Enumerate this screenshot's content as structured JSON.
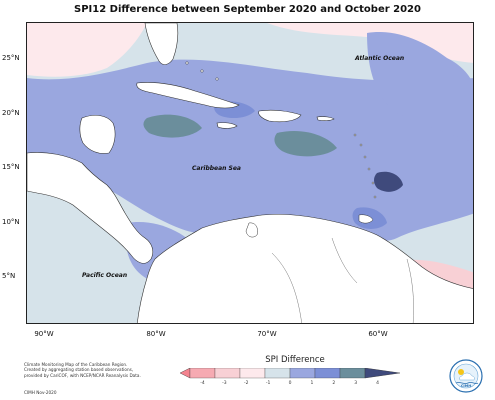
{
  "map": {
    "title": "SPI12 Difference between September 2020 and October 2020",
    "lat_labels": [
      "25°N",
      "20°N",
      "15°N",
      "10°N",
      "5°N"
    ],
    "lon_labels": [
      "90°W",
      "80°W",
      "70°W",
      "60°W"
    ],
    "places": {
      "atlantic": "Atlantic Ocean",
      "caribbean": "Caribbean Sea",
      "pacific": "Pacific Ocean"
    }
  },
  "legend": {
    "title": "SPI Difference",
    "ticks": [
      "-4",
      "-3",
      "-2",
      "-1",
      "0",
      "1",
      "2",
      "3",
      "4"
    ],
    "colors": [
      "#f4838f",
      "#f6aab2",
      "#f8d0d5",
      "#fde9ec",
      "#d6e3ea",
      "#9aa7df",
      "#7c8fd6",
      "#6b8e9c",
      "#3f4a7c"
    ]
  },
  "credit": {
    "text": "Climate Monitoring Map of the Caribbean Region. Created by aggregating station based observations, provided by CariCOF, with NCEP/NCAR Reanalysis Data.",
    "date": "CIMH Nov-2020"
  },
  "logo": {
    "name": "cimh-logo-icon",
    "text": "CIMH"
  }
}
